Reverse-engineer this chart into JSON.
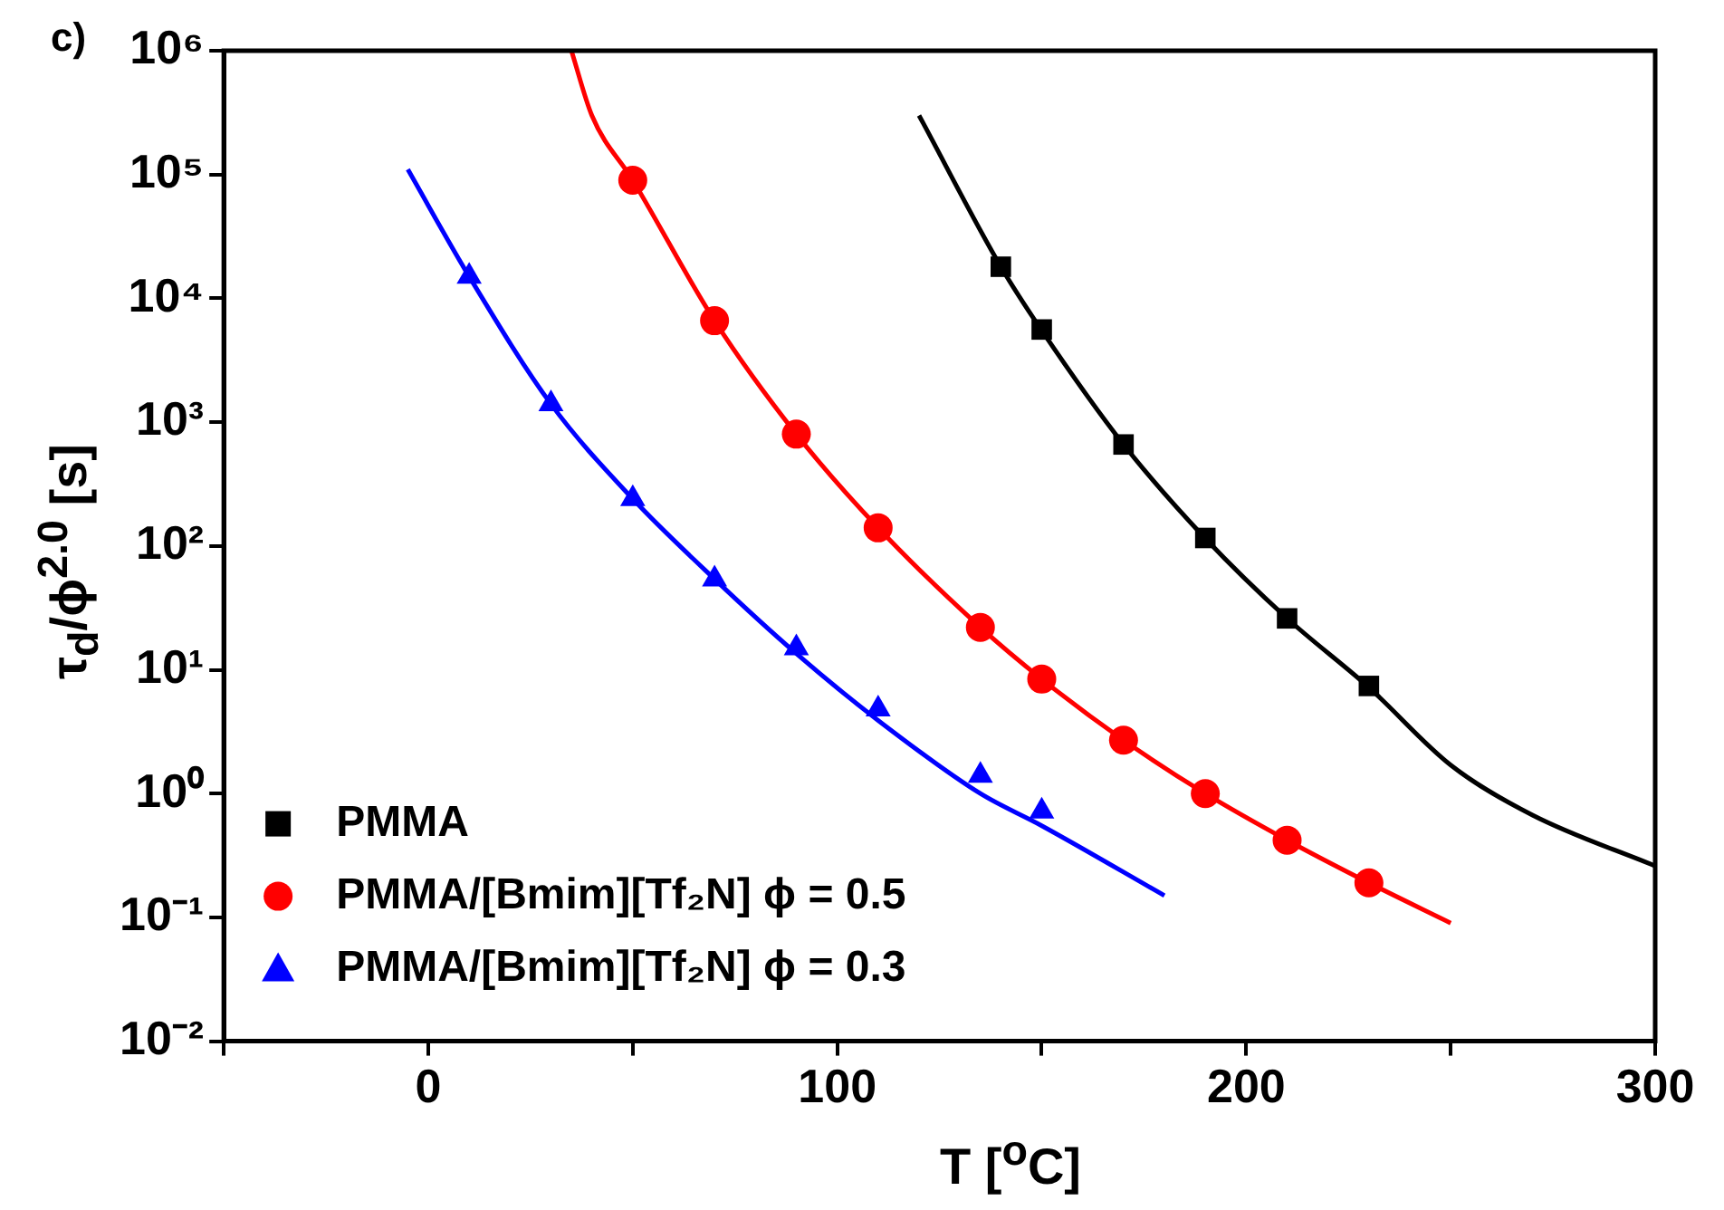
{
  "chart_data": {
    "type": "scatter",
    "xlabel": "T [$^{o}$C]",
    "ylabel": "τ$_{d}$/ϕ$^{2.0}$ [s]",
    "annotations": [
      "c)"
    ],
    "xlim": [
      -50,
      300
    ],
    "xticks": [
      {
        "value": -50,
        "label": null
      },
      0,
      {
        "value": 50,
        "label": null
      },
      100,
      {
        "value": 150,
        "label": null
      },
      200,
      {
        "value": 250,
        "label": null
      },
      300
    ],
    "ylim": [
      0.01,
      1000000
    ],
    "yticks": [
      {
        "value": 0.01,
        "label": "10⁻²"
      },
      {
        "value": 0.1,
        "label": "10⁻¹"
      },
      {
        "value": 1,
        "label": "10⁰"
      },
      {
        "value": 10,
        "label": "10¹"
      },
      {
        "value": 100,
        "label": "10²"
      },
      {
        "value": 1000,
        "label": "10³"
      },
      {
        "value": 10000,
        "label": "10⁴"
      },
      {
        "value": 100000,
        "label": "10⁵"
      },
      {
        "value": 1000000,
        "label": "10⁶"
      }
    ],
    "log": "y",
    "grid": false,
    "legend": "bottom left",
    "series": [
      {
        "name": "PMMA",
        "marker": "square",
        "color": "#000000",
        "x": [
          140,
          150,
          170,
          190,
          210,
          230
        ],
        "values": [
          18000,
          5600,
          660,
          116,
          26,
          7.4
        ]
      },
      {
        "name": "PMMA/[Bmim][Tf₂N] ϕ = 0.5",
        "marker": "circle",
        "color": "#ff0000",
        "x": [
          50,
          70,
          90,
          110,
          135,
          150,
          170,
          190,
          210,
          230
        ],
        "values": [
          90000,
          6600,
          800,
          140,
          22,
          8.4,
          2.7,
          1,
          0.42,
          0.19
        ]
      },
      {
        "name": "PMMA/[Bmim][Tf₂N] ϕ = 0.3",
        "marker": "triangle",
        "color": "#0000ff",
        "x": [
          10,
          30,
          50,
          70,
          90,
          110,
          135,
          150
        ],
        "values": [
          15000,
          1400,
          240,
          54,
          15,
          4.8,
          1.4,
          0.72
        ]
      },
      {
        "type": "line",
        "marker": "none",
        "line_style": "solid",
        "color": "#000000",
        "x": [
          120,
          140,
          150,
          170,
          190,
          210,
          230,
          250,
          270,
          300
        ],
        "values": [
          300000,
          18000,
          5500,
          660,
          115,
          26,
          7.2,
          1.7,
          0.67,
          0.26
        ]
      },
      {
        "type": "line",
        "marker": "none",
        "line_style": "solid",
        "color": "#ff0000",
        "x": [
          35,
          40,
          50,
          70,
          90,
          110,
          135,
          150,
          170,
          190,
          210,
          230,
          250
        ],
        "values": [
          1000000,
          300000,
          90000,
          6600,
          800,
          140,
          22,
          8.4,
          2.7,
          1,
          0.42,
          0.19,
          0.09
        ]
      },
      {
        "type": "line",
        "marker": "none",
        "line_style": "solid",
        "color": "#0000ff",
        "x": [
          -5,
          10,
          30,
          50,
          70,
          90,
          110,
          135,
          150,
          180
        ],
        "values": [
          110000,
          15000,
          1400,
          240,
          54,
          13.5,
          3.9,
          1,
          0.55,
          0.15
        ]
      }
    ]
  }
}
